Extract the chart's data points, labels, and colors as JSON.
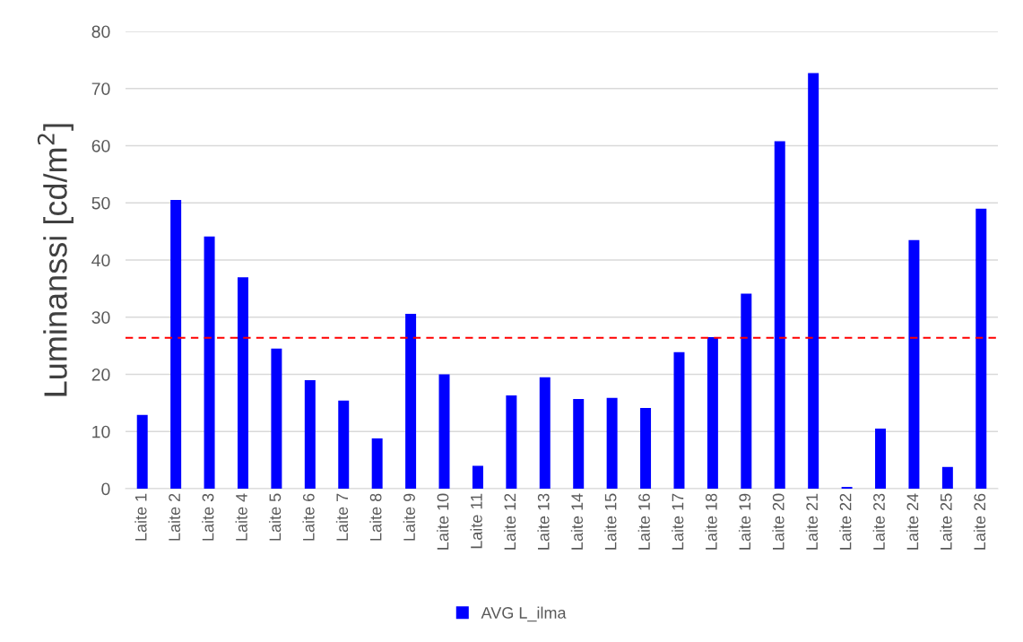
{
  "chart_data": {
    "type": "bar",
    "ylabel": "Luminanssi [cd/m$^{2}$]",
    "categories": [
      "Laite 1",
      "Laite 2",
      "Laite 3",
      "Laite 4",
      "Laite 5",
      "Laite 6",
      "Laite 7",
      "Laite 8",
      "Laite 9",
      "Laite 10",
      "Laite 11",
      "Laite 12",
      "Laite 13",
      "Laite 14",
      "Laite 15",
      "Laite 16",
      "Laite 17",
      "Laite 18",
      "Laite 19",
      "Laite 20",
      "Laite 21",
      "Laite 22",
      "Laite 23",
      "Laite 24",
      "Laite 25",
      "Laite 26"
    ],
    "series": [
      {
        "name": "AVG L_ilma",
        "color": "#0000ff",
        "values": [
          12.9,
          50.5,
          44.1,
          37.0,
          24.5,
          19.0,
          15.4,
          8.8,
          30.6,
          20.0,
          4.0,
          16.3,
          19.5,
          15.7,
          15.9,
          14.1,
          23.9,
          26.5,
          34.1,
          60.8,
          72.7,
          0.3,
          10.5,
          43.5,
          3.8,
          49.0
        ]
      }
    ],
    "ylim": [
      0,
      80
    ],
    "yticks": [
      0,
      10,
      20,
      30,
      40,
      50,
      60,
      70,
      80
    ],
    "ref_lines": [
      {
        "axis": "y",
        "value": 26.4,
        "color": "#ff0000",
        "line_style": "dashed"
      }
    ],
    "grid": "y",
    "legend": "bottom"
  }
}
